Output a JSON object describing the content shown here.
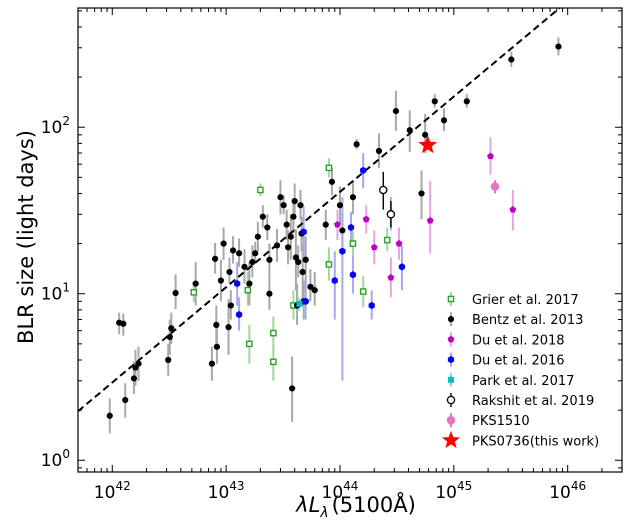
{
  "chart_data": {
    "type": "scatter",
    "xlabel": "λLλ (5100Å)",
    "xlabel_parts": {
      "lambda": "λ",
      "L": "L",
      "sub": "λ",
      "rest": "(5100Å)"
    },
    "ylabel": "BLR size (light days)",
    "x_scale": "log",
    "y_scale": "log",
    "xlim": [
      5e+41,
      3e+46
    ],
    "ylim": [
      0.85,
      520
    ],
    "x_ticks": [
      {
        "value": 1e+42,
        "base": "10",
        "exp": "42"
      },
      {
        "value": 1e+43,
        "base": "10",
        "exp": "43"
      },
      {
        "value": 1e+44,
        "base": "10",
        "exp": "44"
      },
      {
        "value": 1e+45,
        "base": "10",
        "exp": "45"
      },
      {
        "value": 1e+46,
        "base": "10",
        "exp": "46"
      }
    ],
    "y_ticks": [
      {
        "value": 1,
        "base": "10",
        "exp": "0"
      },
      {
        "value": 10,
        "base": "10",
        "exp": "1"
      },
      {
        "value": 100,
        "base": "10",
        "exp": "2"
      }
    ],
    "fit_line": {
      "style": "dashed",
      "color": "#000000",
      "points": [
        [
          5e+41,
          1.97
        ],
        [
          8.5e+45,
          520
        ]
      ]
    },
    "legend_position": "lower-right",
    "series": [
      {
        "name": "Grier et al. 2017",
        "marker": "open-square",
        "color": "#2ca02c",
        "errcolor": "#9fd89f",
        "points": [
          [
            5.2e+42,
            10.2,
            1.5,
            1.3
          ],
          [
            1.55e+43,
            10.5,
            3.0,
            2.0
          ],
          [
            1.6e+43,
            5.0,
            1.5,
            1.2
          ],
          [
            2e+43,
            42.0,
            4.0,
            3.5
          ],
          [
            2.6e+43,
            5.8,
            1.5,
            1.2
          ],
          [
            2.6e+43,
            3.9,
            1.0,
            0.9
          ],
          [
            3.9e+43,
            8.5,
            2.0,
            1.5
          ],
          [
            8e+43,
            57.0,
            8.0,
            7.0
          ],
          [
            8e+43,
            15.0,
            4.0,
            3.0
          ],
          [
            1.3e+44,
            20.0,
            4.0,
            3.0
          ],
          [
            1.6e+44,
            10.3,
            2.5,
            2.0
          ],
          [
            2.6e+44,
            21.0,
            4.0,
            3.0
          ]
        ]
      },
      {
        "name": "Bentz et al. 2013",
        "marker": "dot",
        "color": "#000000",
        "errcolor": "#a8a8a8",
        "points": [
          [
            9.5e+41,
            1.85,
            0.5,
            0.4
          ],
          [
            1.15e+42,
            6.7,
            1.0,
            1.0
          ],
          [
            1.25e+42,
            6.6,
            1.0,
            1.0
          ],
          [
            1.3e+42,
            2.3,
            0.6,
            0.5
          ],
          [
            1.55e+42,
            3.1,
            0.8,
            0.6
          ],
          [
            1.6e+42,
            3.6,
            1.0,
            0.8
          ],
          [
            1.7e+42,
            3.8,
            1.0,
            0.8
          ],
          [
            3.1e+42,
            4.0,
            1.0,
            0.8
          ],
          [
            3.2e+42,
            5.5,
            1.5,
            1.2
          ],
          [
            3.3e+42,
            6.2,
            1.5,
            1.2
          ],
          [
            3.6e+42,
            10.1,
            3.0,
            2.0
          ],
          [
            5.4e+42,
            11.5,
            4.0,
            3.0
          ],
          [
            7.5e+42,
            3.8,
            1.0,
            0.8
          ],
          [
            8e+42,
            16.2,
            4.0,
            3.0
          ],
          [
            8.2e+42,
            6.5,
            2.0,
            1.5
          ],
          [
            8.3e+42,
            4.8,
            1.5,
            1.0
          ],
          [
            9e+42,
            12.0,
            4.0,
            3.0
          ],
          [
            9.5e+42,
            20.0,
            5.0,
            4.0
          ],
          [
            1.05e+43,
            6.3,
            3.0,
            2.0
          ],
          [
            1.07e+43,
            13.5,
            3.0,
            2.0
          ],
          [
            1.1e+43,
            8.5,
            2.0,
            1.5
          ],
          [
            1.15e+43,
            18.2,
            4.0,
            3.0
          ],
          [
            1.3e+43,
            17.5,
            4.0,
            3.0
          ],
          [
            1.45e+43,
            14.5,
            4.0,
            3.0
          ],
          [
            1.6e+43,
            11.5,
            4.0,
            3.0
          ],
          [
            1.7e+43,
            15.5,
            4.0,
            3.0
          ],
          [
            1.8e+43,
            17.5,
            3.0,
            2.0
          ],
          [
            1.9e+43,
            22.0,
            5.0,
            4.0
          ],
          [
            2.1e+43,
            29.0,
            5.0,
            4.0
          ],
          [
            2.3e+43,
            25.0,
            5.0,
            4.0
          ],
          [
            2.4e+43,
            16.0,
            4.0,
            3.0
          ],
          [
            2.4e+43,
            10.0,
            3.0,
            2.0
          ],
          [
            2.8e+43,
            19.5,
            5.0,
            4.0
          ],
          [
            3e+43,
            38.0,
            10.0,
            8.0
          ],
          [
            3.2e+43,
            34.0,
            5.0,
            4.0
          ],
          [
            3.4e+43,
            26.0,
            6.0,
            5.0
          ],
          [
            3.5e+43,
            19.0,
            5.0,
            4.0
          ],
          [
            3.7e+43,
            22.0,
            8.0,
            6.0
          ],
          [
            3.8e+43,
            2.7,
            1.5,
            1.0
          ],
          [
            3.9e+43,
            29.0,
            8.0,
            6.0
          ],
          [
            4e+43,
            36.0,
            10.0,
            8.0
          ],
          [
            4.1e+43,
            16.5,
            8.0,
            6.0
          ],
          [
            4.2e+43,
            8.5,
            3.0,
            2.0
          ],
          [
            4.3e+43,
            15.5,
            4.0,
            3.0
          ],
          [
            4.5e+43,
            34.0,
            8.0,
            6.0
          ],
          [
            4.6e+43,
            23.0,
            6.0,
            5.0
          ],
          [
            4.7e+43,
            13.5,
            6.0,
            5.0
          ],
          [
            4.8e+43,
            9.0,
            3.0,
            2.0
          ],
          [
            5e+43,
            16.0,
            6.0,
            5.0
          ],
          [
            5.5e+43,
            11.0,
            3.0,
            2.0
          ],
          [
            6e+43,
            10.5,
            3.0,
            2.0
          ],
          [
            7.5e+43,
            26.0,
            6.0,
            5.0
          ],
          [
            8.5e+43,
            47.0,
            10.0,
            8.0
          ],
          [
            1e+44,
            34.0,
            10.0,
            8.0
          ],
          [
            1.05e+44,
            24.0,
            6.0,
            5.0
          ],
          [
            1.3e+44,
            38.0,
            10.0,
            8.0
          ],
          [
            1.4e+44,
            79.0,
            6.0,
            5.0
          ],
          [
            2.2e+44,
            72.0,
            20.0,
            15.0
          ],
          [
            3.1e+44,
            125.0,
            40.0,
            30.0
          ],
          [
            4.1e+44,
            96.0,
            30.0,
            25.0
          ],
          [
            5.2e+44,
            40.0,
            15.0,
            12.0
          ],
          [
            5.6e+44,
            90.0,
            30.0,
            20.0
          ],
          [
            6.8e+44,
            143.0,
            15.0,
            12.0
          ],
          [
            8.2e+44,
            110.0,
            20.0,
            15.0
          ],
          [
            1.3e+45,
            143.0,
            15.0,
            12.0
          ],
          [
            3.2e+45,
            255.0,
            30.0,
            25.0
          ],
          [
            8.3e+45,
            305.0,
            40.0,
            35.0
          ]
        ]
      },
      {
        "name": "Du et al. 2018",
        "marker": "pentagon",
        "color": "#bf00bf",
        "errcolor": "#e6a3e6",
        "points": [
          [
            9.5e+43,
            26.0,
            6.0,
            5.0
          ],
          [
            1.7e+44,
            28.0,
            6.0,
            5.0
          ],
          [
            2e+44,
            19.0,
            5.0,
            4.0
          ],
          [
            2.8e+44,
            12.5,
            4.0,
            3.0
          ],
          [
            3.3e+44,
            20.0,
            5.0,
            4.0
          ],
          [
            6.2e+44,
            27.5,
            20.0,
            10.0
          ],
          [
            2.1e+45,
            67.0,
            20.0,
            15.0
          ],
          [
            3.3e+45,
            32.0,
            10.0,
            8.0
          ]
        ]
      },
      {
        "name": "Du et al. 2016",
        "marker": "hexagon",
        "color": "#0000ff",
        "errcolor": "#a8a8ee",
        "points": [
          [
            1.25e+43,
            11.5,
            4.0,
            3.0
          ],
          [
            1.3e+43,
            7.5,
            2.0,
            1.5
          ],
          [
            4.8e+43,
            23.5,
            10.0,
            7.0
          ],
          [
            5e+43,
            9.0,
            3.0,
            2.0
          ],
          [
            9e+43,
            12.0,
            6.0,
            5.0
          ],
          [
            1.05e+44,
            18.0,
            20.0,
            15.0
          ],
          [
            1.25e+44,
            25.0,
            6.0,
            5.0
          ],
          [
            1.3e+44,
            13.0,
            4.0,
            3.0
          ],
          [
            1.6e+44,
            55.0,
            15.0,
            12.0
          ],
          [
            1.9e+44,
            8.5,
            2.0,
            1.5
          ],
          [
            2.8e+44,
            30.0,
            8.0,
            6.0
          ],
          [
            3.5e+44,
            14.5,
            5.0,
            4.0
          ]
        ]
      },
      {
        "name": "Park et al. 2017",
        "marker": "square",
        "color": "#00bfbf",
        "errcolor": "#8fd9d9",
        "points": [
          [
            4.4e+43,
            8.7,
            0.8,
            0.8
          ]
        ]
      },
      {
        "name": "Rakshit et al. 2019",
        "marker": "open-circle",
        "color": "#000000",
        "errcolor": "#000000",
        "points": [
          [
            2.4e+44,
            42.0,
            12.0,
            10.0
          ],
          [
            2.8e+44,
            30.0,
            6.0,
            5.0
          ]
        ]
      },
      {
        "name": "PKS1510",
        "marker": "big-dot",
        "color": "#e377c2",
        "errcolor": "#e377c2",
        "points": [
          [
            2.3e+45,
            44.0,
            4.0,
            4.0
          ]
        ]
      },
      {
        "name": "PKS0736(this work)",
        "marker": "star",
        "color": "#ff0000",
        "errcolor": "#ff0000",
        "points": [
          [
            5.9e+44,
            78.0,
            0.0,
            0.0
          ]
        ]
      }
    ]
  }
}
